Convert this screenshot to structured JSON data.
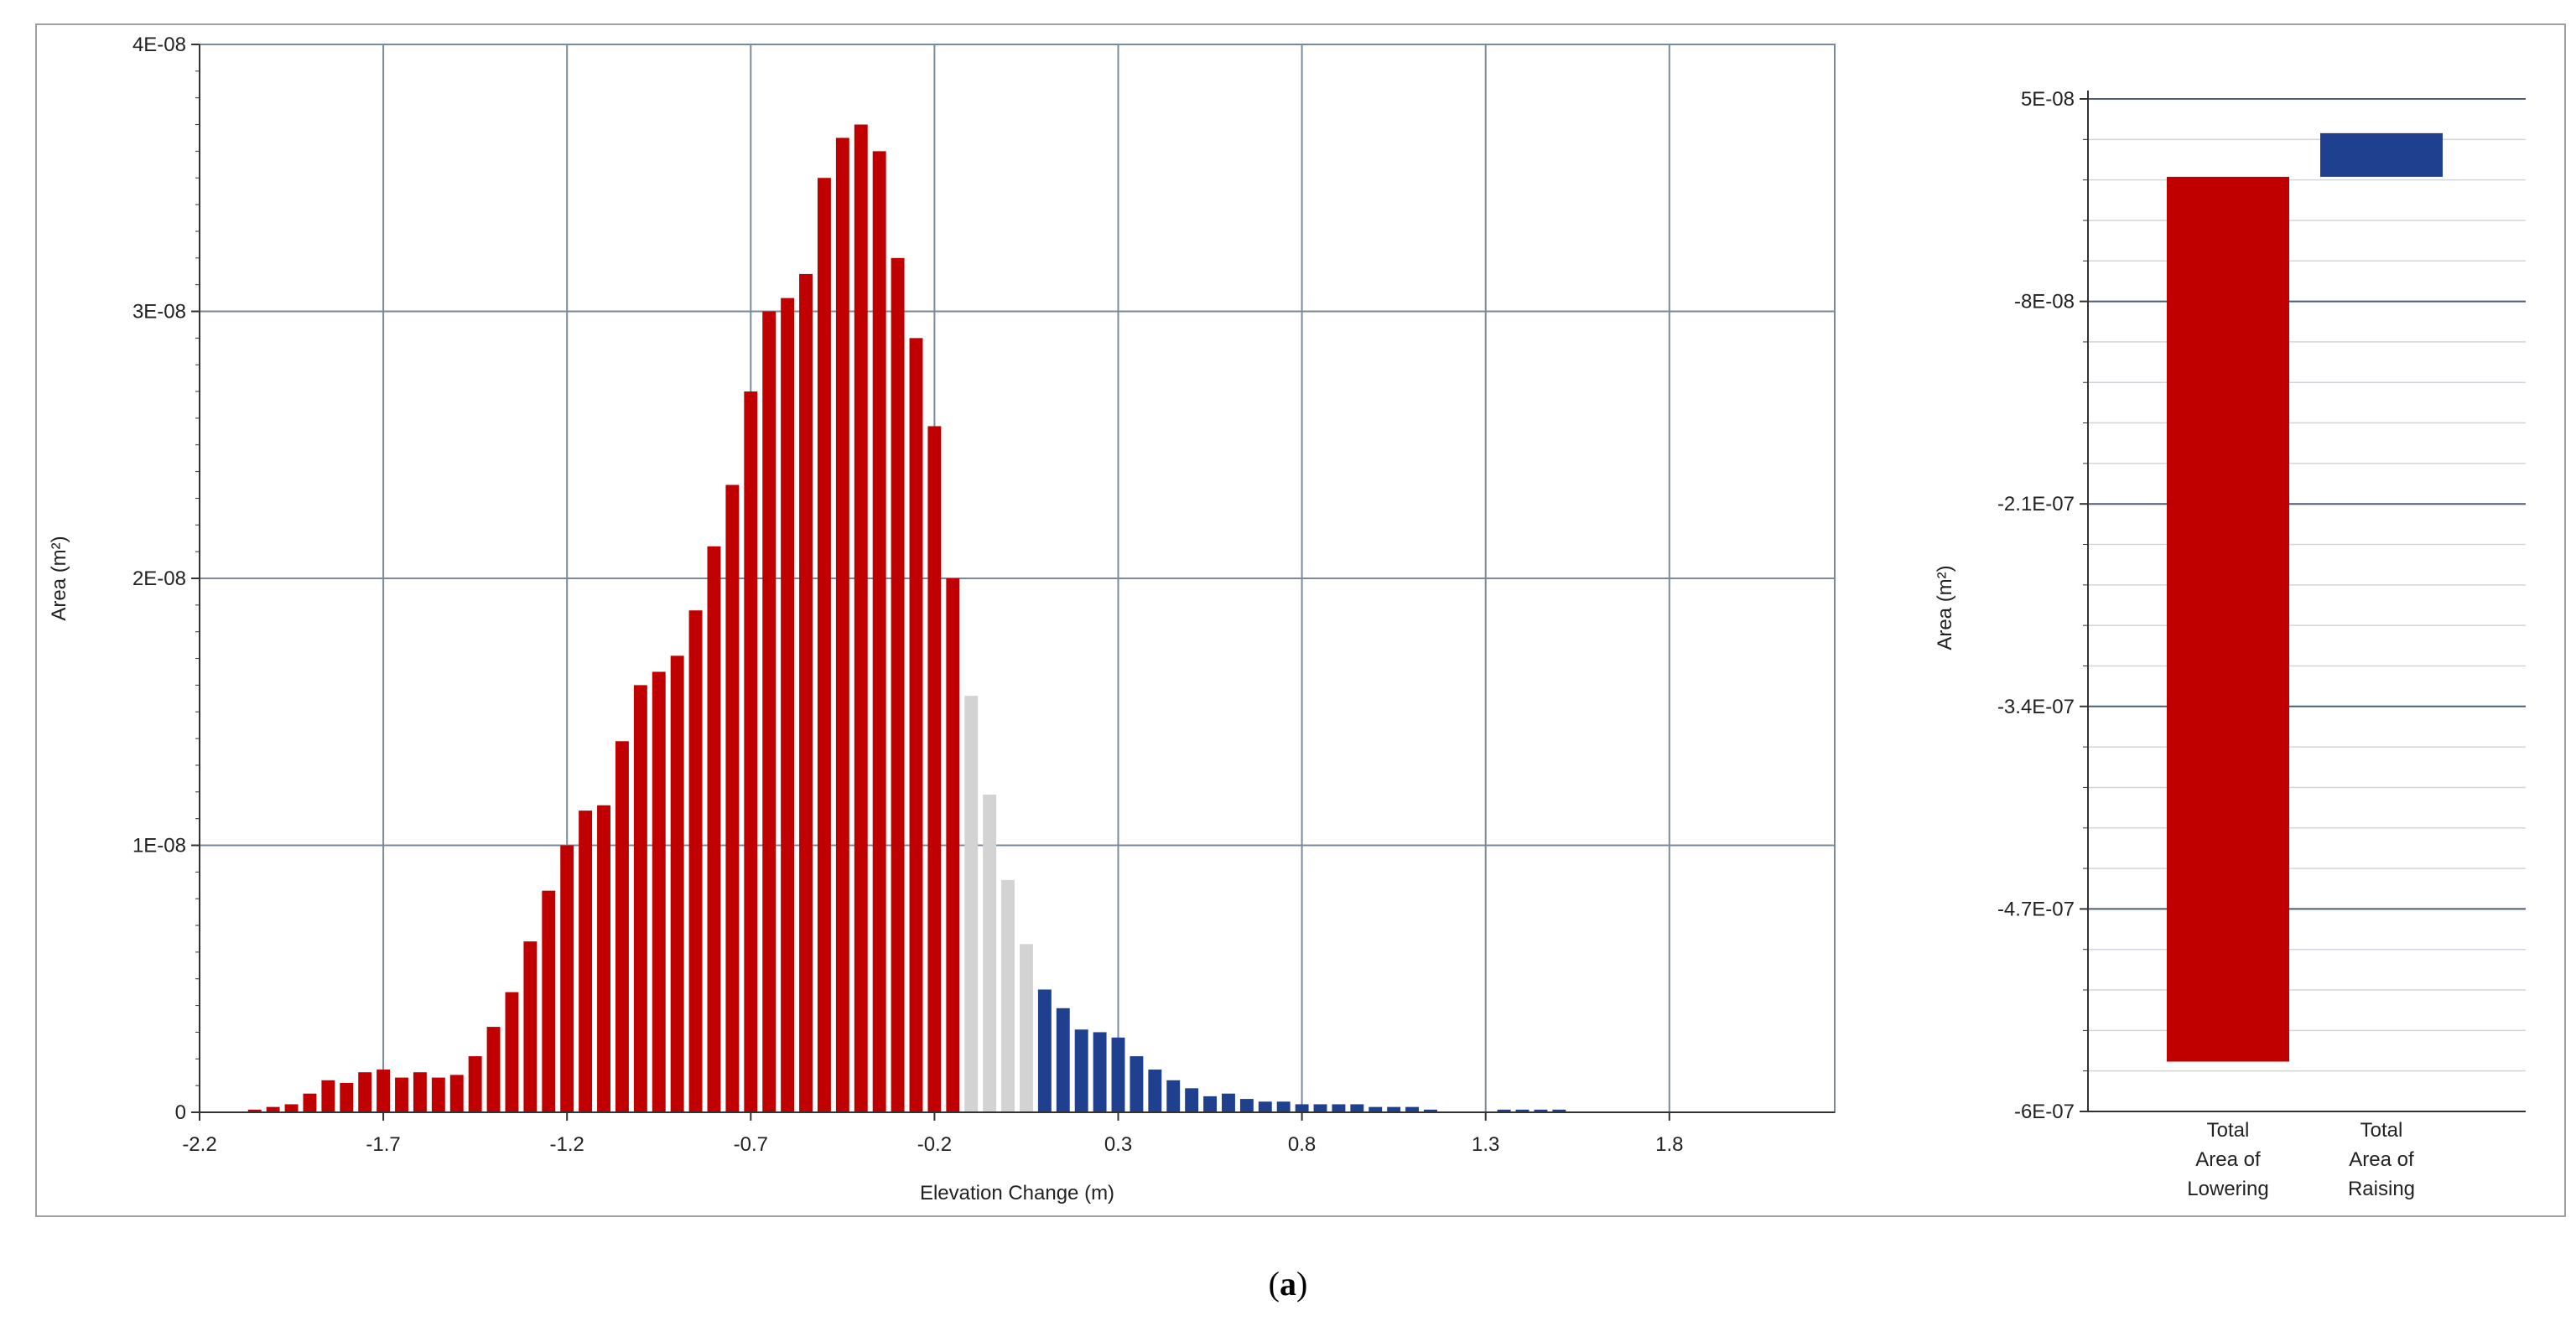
{
  "caption": {
    "open": "(",
    "letter": "a",
    "close": ")"
  },
  "colors": {
    "lowering": "#c00000",
    "excluded": "#d3d3d3",
    "raising": "#1f3f8f",
    "grid": "#7a8a9a",
    "frame": "#a0a0a0"
  },
  "chart_data": [
    {
      "type": "bar",
      "title": "",
      "xlabel": "Elevation Change (m)",
      "ylabel": "Area (m²)",
      "xlim": [
        -2.2,
        2.25
      ],
      "ylim": [
        0,
        4e-08
      ],
      "x_ticks": [
        "-2.2",
        "-1.7",
        "-1.2",
        "-0.7",
        "-0.2",
        "0.3",
        "0.8",
        "1.3",
        "1.8"
      ],
      "y_ticks": [
        "0",
        "1E-08",
        "2E-08",
        "3E-08",
        "4E-08"
      ],
      "grid": true,
      "bin_width": 0.05,
      "x": [
        -2.05,
        -2.0,
        -1.95,
        -1.9,
        -1.85,
        -1.8,
        -1.75,
        -1.7,
        -1.65,
        -1.6,
        -1.55,
        -1.5,
        -1.45,
        -1.4,
        -1.35,
        -1.3,
        -1.25,
        -1.2,
        -1.15,
        -1.1,
        -1.05,
        -1.0,
        -0.95,
        -0.9,
        -0.85,
        -0.8,
        -0.75,
        -0.7,
        -0.65,
        -0.6,
        -0.55,
        -0.5,
        -0.45,
        -0.4,
        -0.35,
        -0.3,
        -0.25,
        -0.2,
        -0.15,
        -0.1,
        -0.05,
        0.0,
        0.05,
        0.1,
        0.15,
        0.2,
        0.25,
        0.3,
        0.35,
        0.4,
        0.45,
        0.5,
        0.55,
        0.6,
        0.65,
        0.7,
        0.75,
        0.8,
        0.85,
        0.9,
        0.95,
        1.0,
        1.05,
        1.1,
        1.15,
        1.2,
        1.25,
        1.3,
        1.35,
        1.4,
        1.45,
        1.5
      ],
      "series": [
        {
          "values": [
            1e-10,
            2e-10,
            3e-10,
            7e-10,
            1.2e-09,
            1.1e-09,
            1.5e-09,
            1.6e-09,
            1.3e-09,
            1.5e-09,
            1.3e-09,
            1.4e-09,
            2.1e-09,
            3.2e-09,
            4.5e-09,
            6.4e-09,
            8.3e-09,
            1e-08,
            1.13e-08,
            1.15e-08,
            1.39e-08,
            1.6e-08,
            1.65e-08,
            1.71e-08,
            1.88e-08,
            2.12e-08,
            2.35e-08,
            2.7e-08,
            3e-08,
            3.05e-08,
            3.14e-08,
            3.5e-08,
            3.65e-08,
            3.7e-08,
            3.6e-08,
            3.2e-08,
            2.9e-08,
            2.57e-08,
            2e-08,
            1.56e-08,
            1.19e-08,
            8.7e-09,
            6.3e-09,
            4.6e-09,
            3.9e-09,
            3.1e-09,
            3e-09,
            2.8e-09,
            2.1e-09,
            1.6e-09,
            1.2e-09,
            9e-10,
            6e-10,
            7e-10,
            5e-10,
            4e-10,
            4e-10,
            3e-10,
            3e-10,
            3e-10,
            3e-10,
            2e-10,
            2e-10,
            2e-10,
            1e-10,
            0,
            0,
            0,
            1e-10,
            1e-10,
            1e-10,
            1e-10
          ],
          "colors": [
            "lowering",
            "lowering",
            "lowering",
            "lowering",
            "lowering",
            "lowering",
            "lowering",
            "lowering",
            "lowering",
            "lowering",
            "lowering",
            "lowering",
            "lowering",
            "lowering",
            "lowering",
            "lowering",
            "lowering",
            "lowering",
            "lowering",
            "lowering",
            "lowering",
            "lowering",
            "lowering",
            "lowering",
            "lowering",
            "lowering",
            "lowering",
            "lowering",
            "lowering",
            "lowering",
            "lowering",
            "lowering",
            "lowering",
            "lowering",
            "lowering",
            "lowering",
            "lowering",
            "lowering",
            "lowering",
            "excluded",
            "excluded",
            "excluded",
            "excluded",
            "raising",
            "raising",
            "raising",
            "raising",
            "raising",
            "raising",
            "raising",
            "raising",
            "raising",
            "raising",
            "raising",
            "raising",
            "raising",
            "raising",
            "raising",
            "raising",
            "raising",
            "raising",
            "raising",
            "raising",
            "raising",
            "raising",
            "raising",
            "raising",
            "raising",
            "raising",
            "raising",
            "raising",
            "raising"
          ]
        }
      ]
    },
    {
      "type": "bar",
      "title": "",
      "xlabel": "",
      "ylabel": "Area (m²)",
      "ylim": [
        -6e-07,
        5e-08
      ],
      "y_ticks": [
        "5E-08",
        "-8E-08",
        "-2.1E-07",
        "-3.4E-07",
        "-4.7E-07",
        "-6E-07"
      ],
      "y_tick_values": [
        5e-08,
        -8e-08,
        -2.1e-07,
        -3.4e-07,
        -4.7e-07,
        -6e-07
      ],
      "grid": true,
      "categories": [
        [
          "Total",
          "Area of",
          "Lowering"
        ],
        [
          "Total",
          "Area of",
          "Raising"
        ]
      ],
      "bars": [
        {
          "base": 0,
          "top": -5.68e-07,
          "color": "lowering"
        },
        {
          "base": 0,
          "top": 2.8e-08,
          "color": "raising"
        }
      ]
    }
  ]
}
